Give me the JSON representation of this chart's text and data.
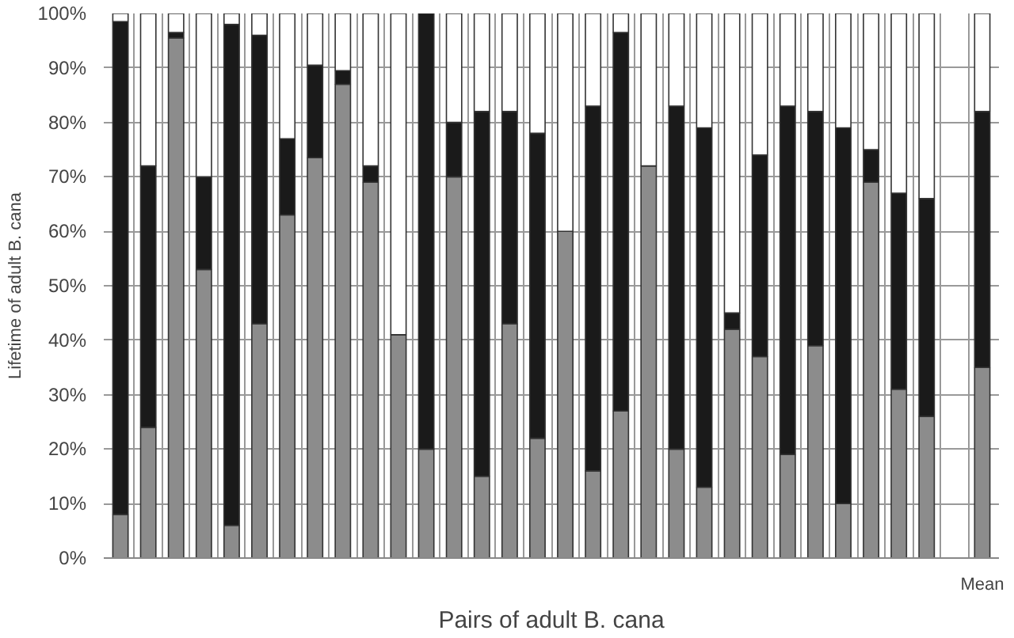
{
  "chart_data": {
    "type": "bar",
    "stacked": true,
    "xlabel": "Pairs of adult B. cana",
    "ylabel": "Lifetime of adult B. cana",
    "categories": [
      null,
      null,
      null,
      null,
      null,
      null,
      null,
      null,
      null,
      null,
      null,
      null,
      null,
      null,
      null,
      null,
      null,
      null,
      null,
      null,
      null,
      null,
      null,
      null,
      null,
      null,
      null,
      null,
      null,
      null,
      null,
      "Mean"
    ],
    "series": [
      {
        "color": "#8c8c8c",
        "values": [
          8,
          24,
          95.5,
          53,
          6,
          43,
          63,
          73.5,
          87,
          69,
          41,
          20,
          70,
          15,
          43,
          22,
          60,
          16,
          27,
          72,
          20,
          13,
          42,
          37,
          19,
          39,
          10,
          69,
          31,
          26,
          null,
          35
        ]
      },
      {
        "color": "#1a1a1a",
        "values": [
          90.5,
          48,
          1,
          17,
          92,
          53,
          14,
          17,
          2.5,
          3,
          0,
          80,
          10,
          67,
          39,
          56,
          0,
          67,
          69.5,
          0,
          63,
          66,
          3,
          37,
          64,
          43,
          69,
          6,
          36,
          40,
          null,
          47
        ]
      },
      {
        "color": "#ffffff",
        "values": [
          1.5,
          28,
          3.5,
          30,
          2,
          4,
          23,
          9.5,
          10.5,
          28,
          59,
          0,
          20,
          18,
          18,
          22,
          40,
          17,
          3.5,
          28,
          17,
          21,
          55,
          26,
          17,
          18,
          21,
          25,
          33,
          34,
          null,
          18
        ]
      }
    ],
    "ylim": [
      0,
      100
    ],
    "yticks": [
      {
        "value": 0,
        "label": "0%"
      },
      {
        "value": 10,
        "label": "10%"
      },
      {
        "value": 20,
        "label": "20%"
      },
      {
        "value": 30,
        "label": "30%"
      },
      {
        "value": 40,
        "label": "40%"
      },
      {
        "value": 50,
        "label": "50%"
      },
      {
        "value": 60,
        "label": "60%"
      },
      {
        "value": 70,
        "label": "70%"
      },
      {
        "value": 80,
        "label": "80%"
      },
      {
        "value": 90,
        "label": "90%"
      },
      {
        "value": 100,
        "label": "100%"
      }
    ],
    "grid": true
  }
}
